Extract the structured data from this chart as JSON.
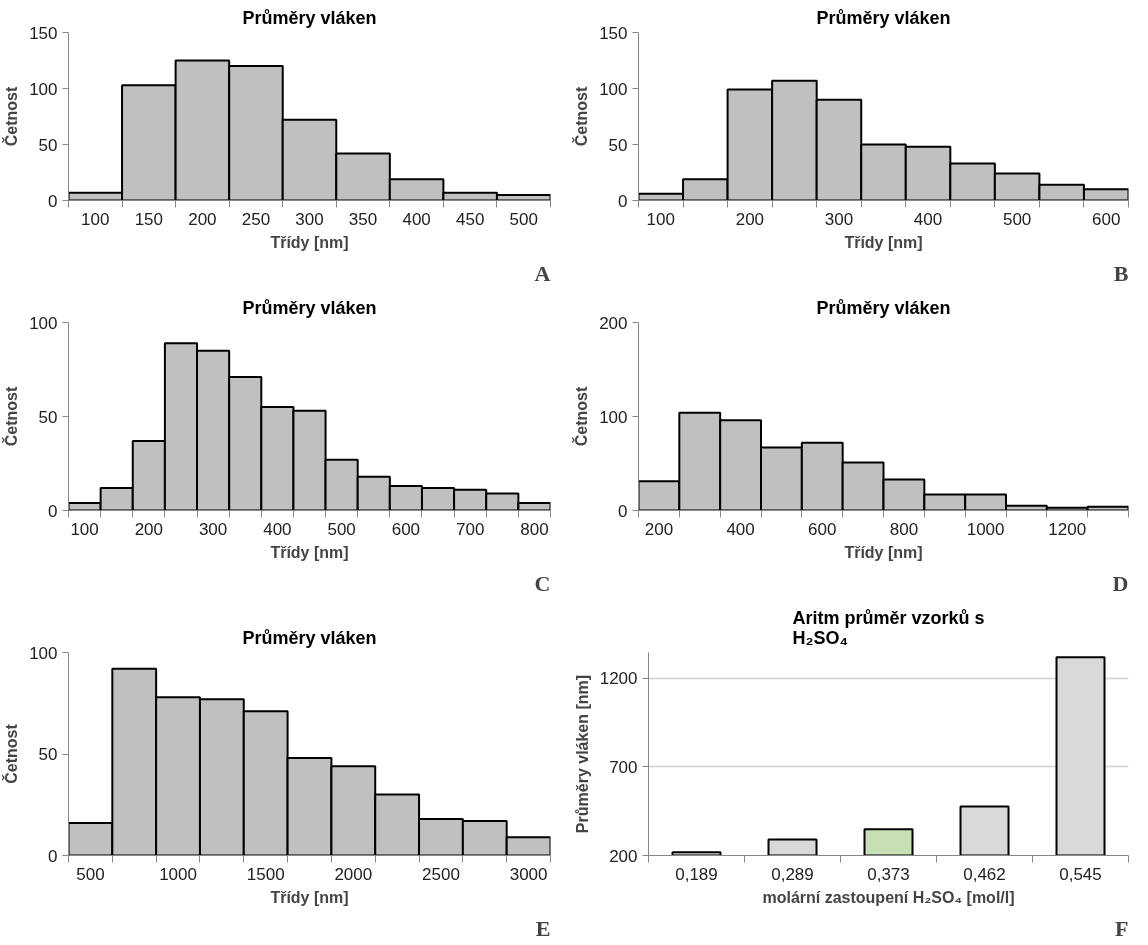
{
  "chart_data": [
    {
      "type": "bar",
      "title": "Průměry vláken",
      "xlabel": "Třídy [nm]",
      "ylabel": "Četnost",
      "categories": [
        "100",
        "150",
        "200",
        "250",
        "300",
        "350",
        "400",
        "450",
        "500"
      ],
      "values": [
        7,
        103,
        125,
        120,
        72,
        42,
        19,
        7,
        5
      ],
      "color": "#c0c0c0",
      "ylim": [
        0,
        150
      ],
      "yticks": [
        0,
        50,
        100,
        150
      ],
      "annotations": [
        "A"
      ]
    },
    {
      "type": "bar",
      "title": "Průměry vláken",
      "xlabel": "Třídy [nm]",
      "ylabel": "Četnost",
      "categories": [
        "100",
        null,
        "200",
        null,
        "300",
        null,
        "400",
        null,
        "500",
        null,
        "600"
      ],
      "values": [
        6,
        19,
        99,
        107,
        90,
        50,
        48,
        33,
        24,
        14,
        10
      ],
      "color": "#c0c0c0",
      "ylim": [
        0,
        150
      ],
      "yticks": [
        0,
        50,
        100,
        150
      ],
      "annotations": [
        "B"
      ]
    },
    {
      "type": "bar",
      "title": "Průměry vláken",
      "xlabel": "Třídy [nm]",
      "ylabel": "Četnost",
      "categories": [
        "100",
        null,
        "200",
        null,
        "300",
        null,
        "400",
        null,
        "500",
        null,
        "600",
        null,
        "700",
        null,
        "800"
      ],
      "values": [
        4,
        12,
        37,
        89,
        85,
        71,
        55,
        53,
        27,
        18,
        13,
        12,
        11,
        9,
        4
      ],
      "color": "#c0c0c0",
      "ylim": [
        0,
        100
      ],
      "yticks": [
        0,
        50,
        100
      ],
      "annotations": [
        "C"
      ]
    },
    {
      "type": "bar",
      "title": "Průměry vláken",
      "xlabel": "Třídy [nm]",
      "ylabel": "Četnost",
      "categories": [
        "200",
        null,
        "400",
        null,
        "600",
        null,
        "800",
        null,
        "1000",
        null,
        "1200",
        null
      ],
      "values": [
        31,
        104,
        96,
        67,
        72,
        51,
        33,
        17,
        17,
        5,
        3,
        4
      ],
      "color": "#c0c0c0",
      "ylim": [
        0,
        200
      ],
      "yticks": [
        0,
        100,
        200
      ],
      "annotations": [
        "D"
      ]
    },
    {
      "type": "bar",
      "title": "Průměry vláken",
      "xlabel": "Třídy [nm]",
      "ylabel": "Četnost",
      "categories": [
        "500",
        null,
        "1000",
        null,
        "1500",
        null,
        "2000",
        null,
        "2500",
        null,
        "3000"
      ],
      "values": [
        16,
        92,
        78,
        77,
        71,
        48,
        44,
        30,
        18,
        17,
        9
      ],
      "color": "#c0c0c0",
      "ylim": [
        0,
        100
      ],
      "yticks": [
        0,
        50,
        100
      ],
      "annotations": [
        "E"
      ]
    },
    {
      "type": "bar",
      "title": "Aritm průměr vzorků s H₂SO₄",
      "xlabel": "molární zastoupení H₂SO₄ [mol/l]",
      "ylabel": "Průměry vláken [nm]",
      "categories": [
        "0,189",
        "0,289",
        "0,373",
        "0,462",
        "0,545"
      ],
      "values": [
        219,
        290,
        348,
        477,
        1318
      ],
      "colors": [
        "#d9d9d9",
        "#d9d9d9",
        "#c6e0b4",
        "#d9d9d9",
        "#d9d9d9"
      ],
      "ylim": [
        200,
        1345
      ],
      "yticks": [
        200,
        700,
        1200
      ],
      "grid": "y",
      "annotations": [
        "F"
      ]
    }
  ]
}
